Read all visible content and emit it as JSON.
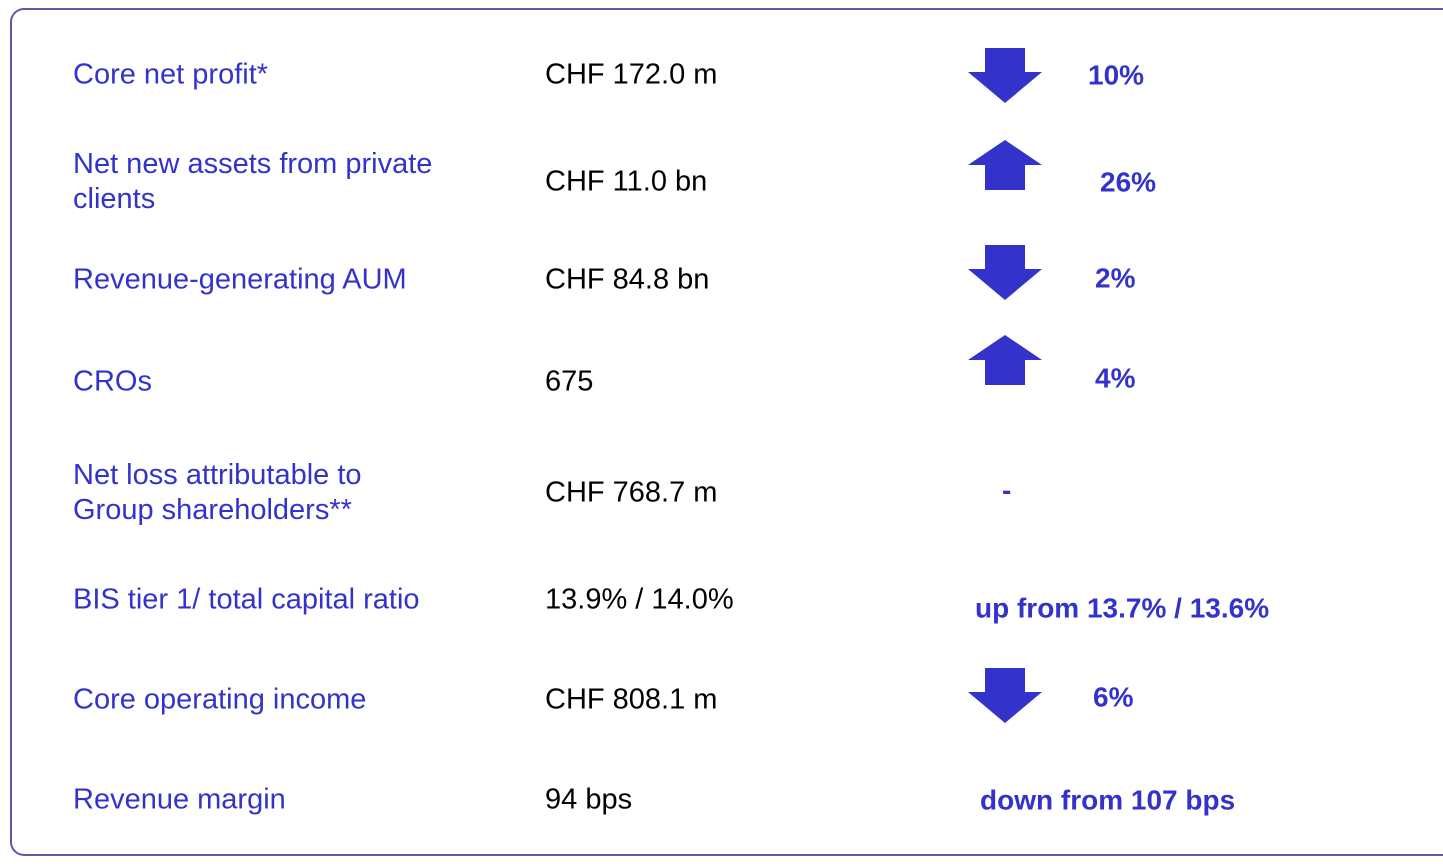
{
  "rows": [
    {
      "label": [
        "Core net profit*"
      ],
      "value": "CHF 172.0 m",
      "change": "10%"
    },
    {
      "label": [
        "Net new assets from private",
        "clients"
      ],
      "value": "CHF 11.0 bn",
      "change": "26%"
    },
    {
      "label": [
        "Revenue-generating AUM"
      ],
      "value": "CHF 84.8 bn",
      "change": "2%"
    },
    {
      "label": [
        "CROs"
      ],
      "value": "675",
      "change": "4%"
    },
    {
      "label": [
        "Net loss attributable to",
        "Group shareholders**"
      ],
      "value": "CHF 768.7 m",
      "change": "-"
    },
    {
      "label": [
        "BIS tier 1/ total capital ratio"
      ],
      "value": "13.9% / 14.0%",
      "change": "up from 13.7% / 13.6%"
    },
    {
      "label": [
        "Core operating income"
      ],
      "value": "CHF 808.1 m",
      "change": "6%"
    },
    {
      "label": [
        "Revenue margin"
      ],
      "value": "94 bps",
      "change": "down from 107 bps"
    }
  ]
}
